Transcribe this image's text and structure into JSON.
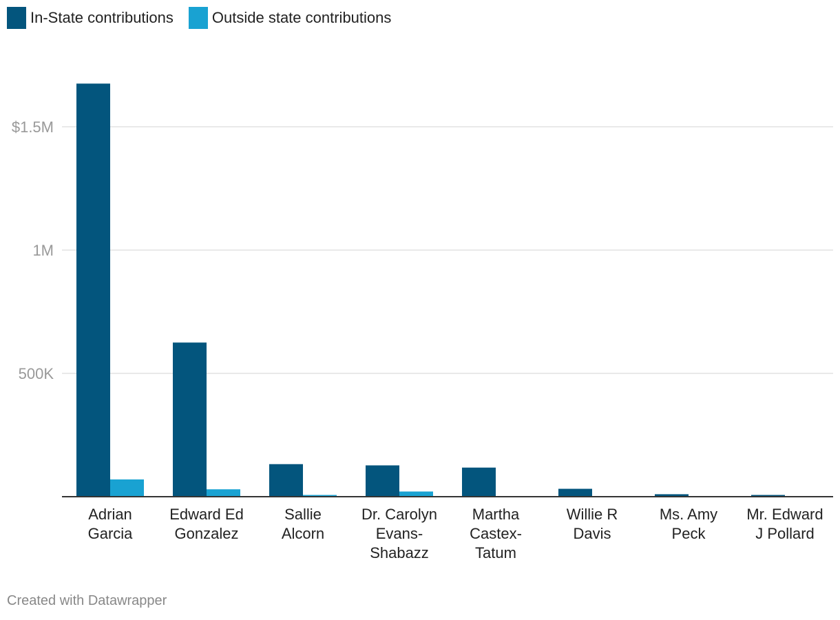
{
  "colors": {
    "in_state": "#03557d",
    "outside_state": "#19a2d2",
    "grid": "#e2e2e2",
    "axis": "#333333",
    "tick_text": "#999999",
    "category_text": "#222222"
  },
  "legend": [
    {
      "label": "In-State contributions",
      "color": "#03557d"
    },
    {
      "label": "Outside state contributions",
      "color": "#19a2d2"
    }
  ],
  "footer": {
    "credit": "Created with Datawrapper"
  },
  "chart_data": {
    "type": "bar",
    "title": "",
    "xlabel": "",
    "ylabel": "",
    "ylim": [
      0,
      1750000
    ],
    "y_ticks": [
      {
        "value": 500000,
        "label": "500K"
      },
      {
        "value": 1000000,
        "label": "1M"
      },
      {
        "value": 1500000,
        "label": "$1.5M"
      }
    ],
    "grid": true,
    "legend_position": "top-left",
    "categories": [
      [
        "Adrian",
        "Garcia"
      ],
      [
        "Edward Ed",
        "Gonzalez"
      ],
      [
        "Sallie",
        "Alcorn"
      ],
      [
        "Dr. Carolyn",
        "Evans-",
        "Shabazz"
      ],
      [
        "Martha",
        "Castex-",
        "Tatum"
      ],
      [
        "Willie R",
        "Davis"
      ],
      [
        "Ms. Amy",
        "Peck"
      ],
      [
        "Mr. Edward",
        "J Pollard"
      ]
    ],
    "series": [
      {
        "name": "In-State contributions",
        "color": "#03557d",
        "values": [
          1675000,
          625000,
          132000,
          127000,
          118000,
          32000,
          10000,
          7000
        ]
      },
      {
        "name": "Outside state contributions",
        "color": "#19a2d2",
        "values": [
          70000,
          30000,
          7000,
          21000,
          1000,
          0,
          0,
          0
        ]
      }
    ]
  }
}
